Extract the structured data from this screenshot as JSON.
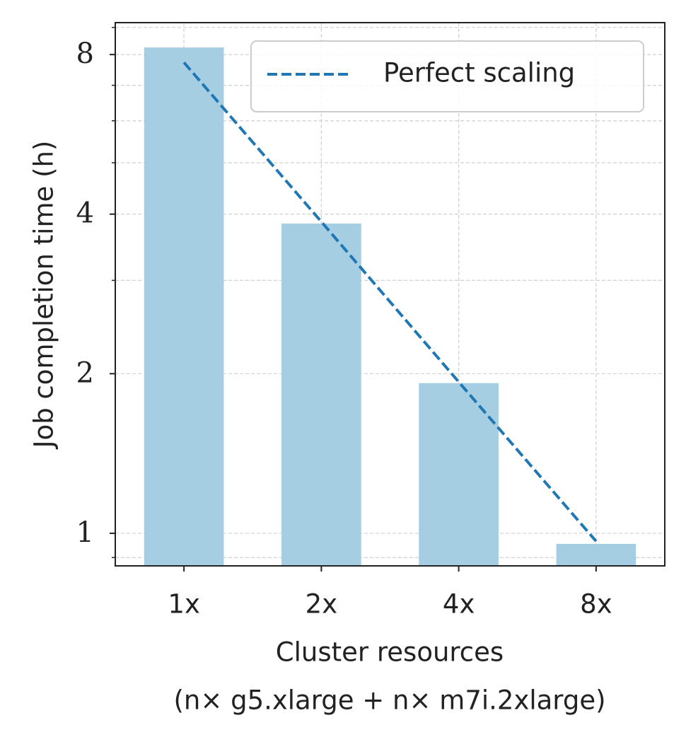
{
  "chart_data": {
    "type": "bar",
    "categories": [
      "1x",
      "2x",
      "4x",
      "8x"
    ],
    "values": [
      8.25,
      3.84,
      1.92,
      0.955
    ],
    "color": "#a6cee3",
    "line_series": [
      {
        "name": "Perfect scaling",
        "color": "#1f77b4",
        "values": [
          7.73,
          3.87,
          1.93,
          0.966
        ]
      }
    ],
    "xlabel": [
      "Cluster resources",
      "(n× g5.xlarge + n× m7i.2xlarge)"
    ],
    "ylabel": "Job completion time (h)",
    "yscale": "log",
    "ylim": [
      0.868,
      9.19
    ],
    "yticks": [
      1,
      2,
      4,
      8
    ],
    "yminor_ticks": [
      0.9,
      3,
      5,
      6,
      7,
      9
    ],
    "grid": true,
    "legend": "upper right"
  }
}
